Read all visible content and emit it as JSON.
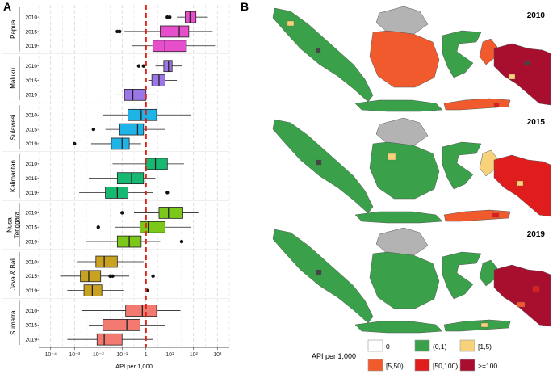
{
  "panel_a_letter": "A",
  "panel_b_letter": "B",
  "chart_data": {
    "type": "box",
    "title": "",
    "xlabel": "API per 1,000",
    "x_scale": "log10",
    "xlim_log": [
      -4.5,
      3.5
    ],
    "x_tick_labels": [
      "10⁻⁴",
      "10⁻³",
      "10⁻²",
      "10⁻¹",
      "1",
      "10¹",
      "10²",
      "10³"
    ],
    "x_tick_values_log": [
      -4,
      -3,
      -2,
      -1,
      0,
      1,
      2,
      3
    ],
    "reference_line_log": 0,
    "reference_color": "#e3231b",
    "years": [
      "2010",
      "2015",
      "2019"
    ],
    "groups": [
      {
        "region": "Papua",
        "color": "#e64ecb",
        "boxes": [
          {
            "year": "2010",
            "whisker_low": 1.3,
            "q1": 1.65,
            "median": 1.85,
            "q3": 2.1,
            "whisker_high": 2.6,
            "outliers": [
              0.9,
              1.0
            ]
          },
          {
            "year": "2015",
            "whisker_low": -0.9,
            "q1": 0.6,
            "median": 1.4,
            "q3": 1.8,
            "whisker_high": 2.8,
            "outliers": [
              -1.2,
              -1.1
            ]
          },
          {
            "year": "2019",
            "whisker_low": -0.6,
            "q1": 0.3,
            "median": 0.8,
            "q3": 1.7,
            "whisker_high": 2.9,
            "outliers": []
          }
        ]
      },
      {
        "region": "Maluku",
        "color": "#9a76e6",
        "boxes": [
          {
            "year": "2010",
            "whisker_low": 0.4,
            "q1": 0.75,
            "median": 0.95,
            "q3": 1.1,
            "whisker_high": 1.5,
            "outliers": [
              -0.1,
              -0.3
            ]
          },
          {
            "year": "2015",
            "whisker_low": 0.1,
            "q1": 0.25,
            "median": 0.55,
            "q3": 0.8,
            "whisker_high": 1.3,
            "outliers": []
          },
          {
            "year": "2019",
            "whisker_low": -1.3,
            "q1": -0.9,
            "median": -0.55,
            "q3": 0.0,
            "whisker_high": 0.4,
            "outliers": []
          }
        ]
      },
      {
        "region": "Sulawesi",
        "color": "#1fb4e8",
        "boxes": [
          {
            "year": "2010",
            "whisker_low": -1.8,
            "q1": -0.75,
            "median": -0.2,
            "q3": 0.45,
            "whisker_high": 1.9,
            "outliers": []
          },
          {
            "year": "2015",
            "whisker_low": -1.7,
            "q1": -1.1,
            "median": -0.35,
            "q3": -0.1,
            "whisker_high": 0.8,
            "outliers": [
              -2.2
            ]
          },
          {
            "year": "2019",
            "whisker_low": -2.3,
            "q1": -1.45,
            "median": -1.0,
            "q3": -0.7,
            "whisker_high": -0.2,
            "outliers": [
              -3.0
            ]
          }
        ]
      },
      {
        "region": "Kalimantan",
        "color": "#16b872",
        "boxes": [
          {
            "year": "2010",
            "whisker_low": -1.4,
            "q1": 0.0,
            "median": 0.4,
            "q3": 0.9,
            "whisker_high": 1.6,
            "outliers": []
          },
          {
            "year": "2015",
            "whisker_low": -2.4,
            "q1": -1.2,
            "median": -0.6,
            "q3": -0.1,
            "whisker_high": 0.4,
            "outliers": []
          },
          {
            "year": "2019",
            "whisker_low": -2.8,
            "q1": -1.7,
            "median": -1.2,
            "q3": -0.75,
            "whisker_high": 0.3,
            "outliers": [
              0.9
            ]
          }
        ]
      },
      {
        "region": "Nusa\nTenggara",
        "color": "#7bc81a",
        "boxes": [
          {
            "year": "2010",
            "whisker_low": -0.5,
            "q1": 0.55,
            "median": 0.95,
            "q3": 1.55,
            "whisker_high": 2.2,
            "outliers": [
              -1.0
            ]
          },
          {
            "year": "2015",
            "whisker_low": -1.3,
            "q1": -0.25,
            "median": 0.1,
            "q3": 0.8,
            "whisker_high": 1.9,
            "outliers": [
              -2.0
            ]
          },
          {
            "year": "2019",
            "whisker_low": -2.5,
            "q1": -1.2,
            "median": -0.7,
            "q3": -0.2,
            "whisker_high": 0.6,
            "outliers": [
              1.5
            ]
          }
        ]
      },
      {
        "region": "Java & Bali",
        "color": "#c9a222",
        "boxes": [
          {
            "year": "2010",
            "whisker_low": -2.9,
            "q1": -2.1,
            "median": -1.75,
            "q3": -1.2,
            "whisker_high": -0.1,
            "outliers": []
          },
          {
            "year": "2015",
            "whisker_low": -3.6,
            "q1": -2.75,
            "median": -2.4,
            "q3": -1.9,
            "whisker_high": -0.7,
            "outliers": [
              -1.5,
              -1.4,
              0.3
            ]
          },
          {
            "year": "2019",
            "whisker_low": -3.3,
            "q1": -2.6,
            "median": -2.25,
            "q3": -1.85,
            "whisker_high": -0.95,
            "outliers": [
              0.05
            ]
          }
        ]
      },
      {
        "region": "Sumatra",
        "color": "#f37a71",
        "boxes": [
          {
            "year": "2010",
            "whisker_low": -2.7,
            "q1": -0.85,
            "median": -0.15,
            "q3": 0.45,
            "whisker_high": 1.45,
            "outliers": []
          },
          {
            "year": "2015",
            "whisker_low": -2.4,
            "q1": -1.8,
            "median": -0.8,
            "q3": -0.25,
            "whisker_high": 0.8,
            "outliers": []
          },
          {
            "year": "2019",
            "whisker_low": -3.3,
            "q1": -2.05,
            "median": -1.75,
            "q3": -1.0,
            "whisker_high": 0.3,
            "outliers": []
          }
        ]
      }
    ]
  },
  "maps": {
    "years": [
      "2010",
      "2015",
      "2019"
    ],
    "legend_title": "API per 1,000",
    "legend": [
      {
        "label": "0",
        "color": "#ffffff"
      },
      {
        "label": "(0,1)",
        "color": "#3aa14a"
      },
      {
        "label": "[1,5)",
        "color": "#f7d27a"
      },
      {
        "label": "[5,50)",
        "color": "#f15a2c"
      },
      {
        "label": "[50,100)",
        "color": "#e01d1d"
      },
      {
        "label": ">=100",
        "color": "#a80f2e"
      }
    ],
    "no_data_color": "#b3b3b3",
    "no_data_dark": "#444444"
  }
}
